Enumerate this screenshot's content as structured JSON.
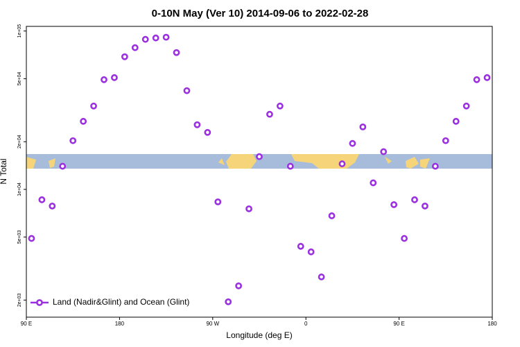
{
  "chart_data": {
    "type": "scatter",
    "title": "0-10N May (Ver 10)   2014-09-06 to 2022-02-28",
    "x_label": "Longitude (deg E)",
    "y_label": "N Total",
    "log_y": true,
    "legend": "bottom left",
    "xlim": [
      90,
      540
    ],
    "xticks": [
      {
        "value": 90,
        "label": "90 E"
      },
      180,
      {
        "value": 270,
        "label": "90 W"
      },
      {
        "value": 360,
        "label": "0"
      },
      {
        "value": 450,
        "label": "90 E"
      },
      {
        "value": 540,
        "label": "180"
      }
    ],
    "ylim": [
      1560,
      107000
    ],
    "yticks": [
      {
        "value": 2000,
        "label": "2e+03"
      },
      {
        "value": 5000,
        "label": "5e+03"
      },
      {
        "value": 10000,
        "label": "1e+04"
      },
      {
        "value": 20000,
        "label": "2e+04"
      },
      {
        "value": 50000,
        "label": "5e+04"
      },
      {
        "value": 100000,
        "label": "1e+05"
      }
    ],
    "series": [
      {
        "name": "Land (Nadir&Glint) and Ocean (Glint)",
        "color": "#9b30e0",
        "x": [
          95,
          105,
          115,
          125,
          135,
          145,
          155,
          165,
          175,
          185,
          195,
          205,
          215,
          225,
          235,
          245,
          255,
          265,
          275,
          285,
          295,
          305,
          315,
          325,
          335,
          345,
          355,
          365,
          375,
          385,
          395,
          405,
          415,
          425,
          435,
          445,
          455,
          465,
          475,
          485,
          495,
          505,
          515,
          525,
          535
        ],
        "values": [
          4900,
          8600,
          7850,
          14000,
          20300,
          26900,
          33600,
          49300,
          50800,
          68800,
          78500,
          88600,
          90400,
          91400,
          73100,
          42000,
          25600,
          22900,
          8340,
          1950,
          2460,
          7540,
          16100,
          29800,
          33600,
          14000,
          4370,
          4030,
          2800,
          6810,
          14500,
          19500,
          24800,
          11000,
          17300,
          8010,
          4900,
          8600,
          7850,
          14000,
          20300,
          26900,
          33600,
          49300,
          50800
        ]
      }
    ]
  }
}
